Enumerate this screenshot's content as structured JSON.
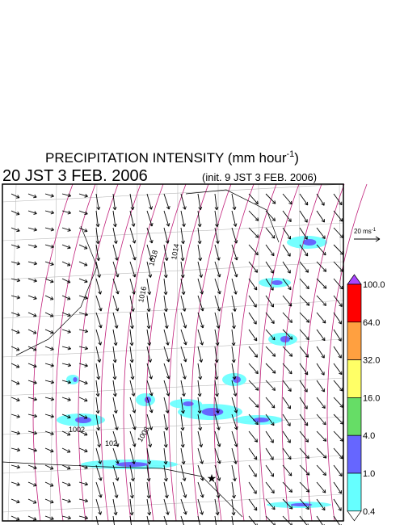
{
  "header": {
    "title": {
      "text": "PRECIPITATION INTENSITY (mm hour",
      "sup": "-1",
      "close": ")"
    },
    "valid_time": "20 JST 3 FEB. 2006",
    "init_time": "(init. 9 JST 3 FEB. 2006)"
  },
  "wind_scale": {
    "text": "20 ms",
    "sup": "-1"
  },
  "colorbar": {
    "labels": [
      "100.0",
      "64.0",
      "32.0",
      "16.0",
      "4.0",
      "1.0",
      "0.4"
    ],
    "colors": [
      "#ff0000",
      "#ffa040",
      "#ffff66",
      "#66dd66",
      "#6666ff",
      "#66ffff"
    ],
    "over_color": "#aa44ff",
    "under_color": "#ffffff"
  },
  "map": {
    "contour_labels": [
      "1018",
      "1016",
      "1014",
      "1002",
      "102",
      "1008"
    ]
  }
}
